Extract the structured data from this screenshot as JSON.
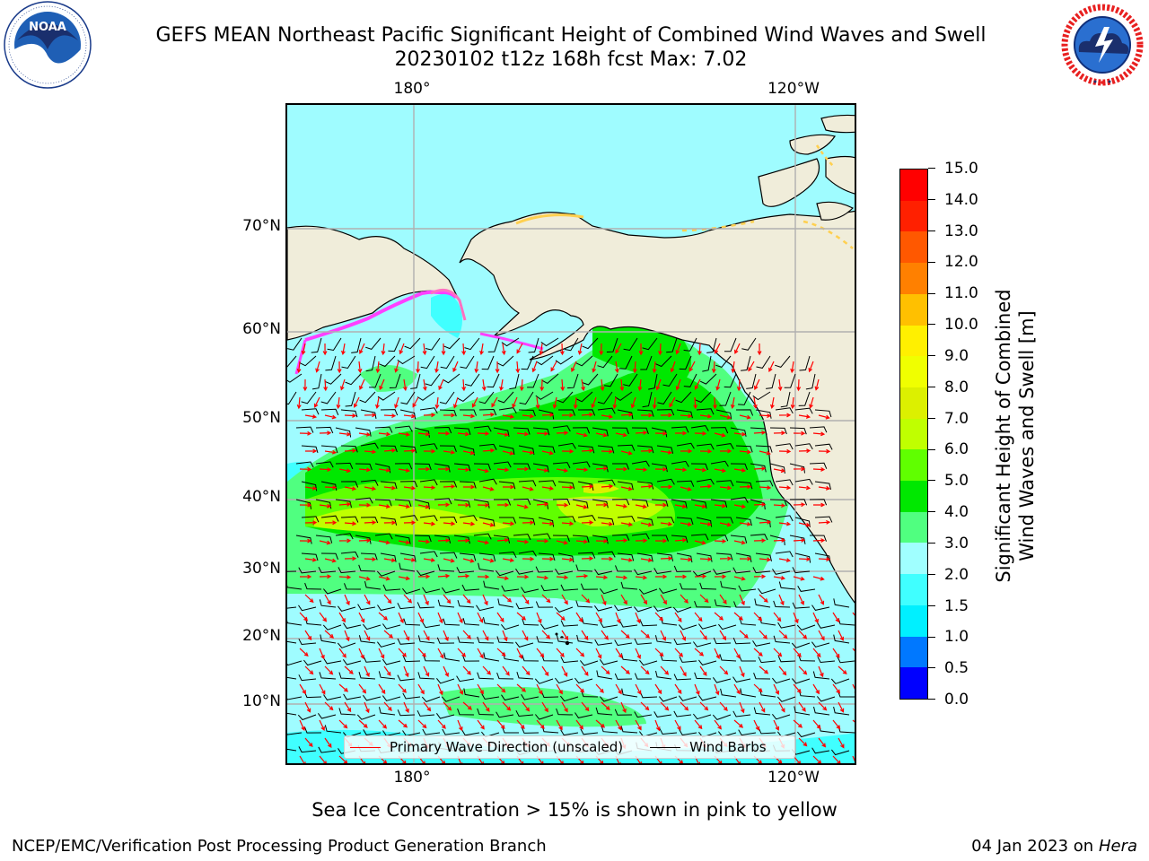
{
  "header": {
    "title_line1": "GEFS MEAN Northeast Pacific Significant Height of Combined Wind Waves and Swell",
    "title_line2": "20230102 t12z 168h fcst   Max: 7.02"
  },
  "logos": {
    "left": {
      "name": "NOAA",
      "ring_text": "NATIONAL OCEANIC AND ATMOSPHERIC ADMINISTRATION · U.S. DEPARTMENT OF COMMERCE"
    },
    "right": {
      "name": "NATIONAL WEATHER SERVICE"
    }
  },
  "map": {
    "lon_labels_top": [
      "180°",
      "120°W"
    ],
    "lon_labels_bottom": [
      "180°",
      "120°W"
    ],
    "lat_labels": [
      "70°N",
      "60°N",
      "50°N",
      "40°N",
      "30°N",
      "20°N",
      "10°N"
    ],
    "legend": [
      {
        "label": "Primary Wave Direction (unscaled)",
        "color": "#ff0000"
      },
      {
        "label": "Wind Barbs",
        "color": "#000000"
      }
    ],
    "colors": {
      "land": "#f0edda",
      "ice_pink": "#ff40ff",
      "ice_yellow": "#ffd050"
    }
  },
  "colorbar": {
    "label_line1": "Significant Height of Combined",
    "label_line2": "Wind Waves and Swell [m]",
    "ticks": [
      "0.0",
      "0.5",
      "1.0",
      "1.5",
      "2.0",
      "3.0",
      "4.0",
      "5.0",
      "6.0",
      "7.0",
      "8.0",
      "9.0",
      "10.0",
      "11.0",
      "12.0",
      "13.0",
      "14.0",
      "15.0"
    ],
    "colors": [
      "#0000ff",
      "#0078ff",
      "#00f0ff",
      "#40ffff",
      "#a0ffff",
      "#50ff80",
      "#00e800",
      "#60ff00",
      "#c0ff00",
      "#dcf000",
      "#f0ff00",
      "#fff000",
      "#ffc000",
      "#ff8000",
      "#ff5800",
      "#ff2000",
      "#ff0000"
    ]
  },
  "footer": {
    "note": "Sea Ice Concentration > 15% is shown in pink to yellow",
    "credit_left": "NCEP/EMC/Verification Post Processing Product Generation Branch",
    "credit_right_date": "04 Jan 2023 on ",
    "credit_right_host": "Hera"
  }
}
